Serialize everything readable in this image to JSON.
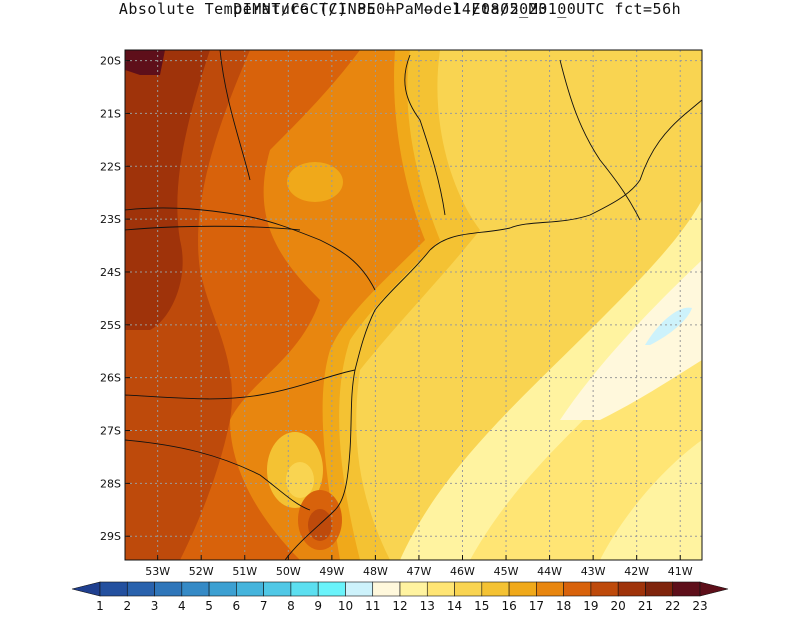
{
  "header": {
    "line1": "DIMNT/CGCT/INPE –  Model Eta05_M01_",
    "line2": "Absolute Temperature (C) 850hPa –  14/08/2023 00UTC fct=56h"
  },
  "map": {
    "lat_labels": [
      "20S",
      "21S",
      "22S",
      "23S",
      "24S",
      "25S",
      "26S",
      "27S",
      "28S",
      "29S"
    ],
    "lon_labels": [
      "53W",
      "52W",
      "51W",
      "50W",
      "49W",
      "48W",
      "47W",
      "46W",
      "45W",
      "44W",
      "43W",
      "42W",
      "41W"
    ],
    "lon_range": [
      -53.75,
      -40.5
    ],
    "lat_range": [
      -29.45,
      -19.8
    ]
  },
  "colorbar": {
    "labels": [
      "1",
      "2",
      "3",
      "4",
      "5",
      "6",
      "7",
      "8",
      "9",
      "10",
      "11",
      "12",
      "13",
      "14",
      "15",
      "16",
      "17",
      "18",
      "19",
      "20",
      "21",
      "22",
      "23"
    ],
    "colors": [
      "#1f3f8f",
      "#23509f",
      "#2962ad",
      "#2f76ba",
      "#358ac6",
      "#3ca0d2",
      "#45b4dc",
      "#50c8e6",
      "#5cdff0",
      "#6af3fa",
      "#cdf2fb",
      "#fff8dc",
      "#fff3a0",
      "#ffe574",
      "#f9d451",
      "#f4c233",
      "#f0a91a",
      "#e8860f",
      "#d8620b",
      "#be4a0b",
      "#9f330a",
      "#7f240c",
      "#5e0f1a"
    ],
    "low_color": "#1f3f8f",
    "high_color": "#5e0f1a"
  }
}
